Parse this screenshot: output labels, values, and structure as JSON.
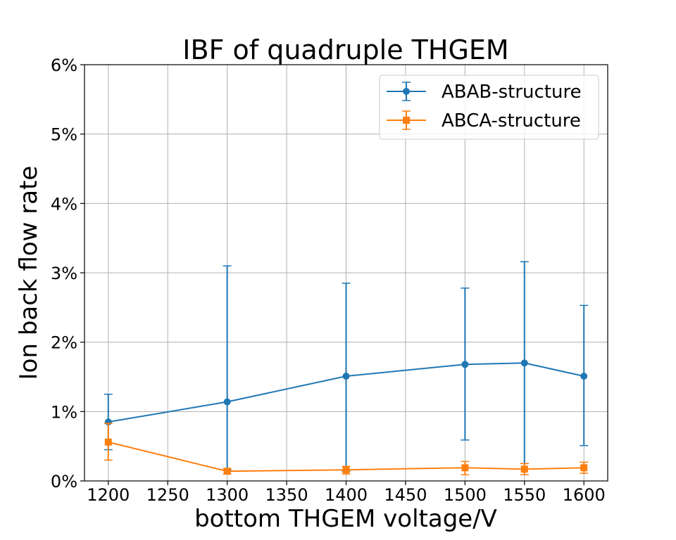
{
  "chart_data": {
    "type": "line",
    "title": "IBF of quadruple THGEM",
    "xlabel": "bottom THGEM voltage/V",
    "ylabel": "Ion back flow rate",
    "x": [
      1200,
      1300,
      1400,
      1500,
      1550,
      1600
    ],
    "xlim": [
      1180,
      1620
    ],
    "ylim": [
      0,
      6
    ],
    "xticks": [
      1200,
      1250,
      1300,
      1350,
      1400,
      1450,
      1500,
      1550,
      1600
    ],
    "yticks": [
      0,
      1,
      2,
      3,
      4,
      5,
      6
    ],
    "ytick_labels": [
      "0%",
      "1%",
      "2%",
      "3%",
      "4%",
      "5%",
      "6%"
    ],
    "y_unit": "percent",
    "grid": true,
    "legend_position": "top-right",
    "series": [
      {
        "name": "ABAB-structure",
        "color": "#1f77b4",
        "marker": "circle",
        "values": [
          0.85,
          1.14,
          1.51,
          1.68,
          1.7,
          1.51
        ],
        "err_low": [
          0.45,
          0.16,
          0.14,
          0.59,
          0.25,
          0.51
        ],
        "err_high": [
          1.25,
          3.1,
          2.85,
          2.78,
          3.16,
          2.53
        ]
      },
      {
        "name": "ABCA-structure",
        "color": "#ff7f0e",
        "marker": "square",
        "values": [
          0.56,
          0.14,
          0.16,
          0.19,
          0.17,
          0.19
        ],
        "err_low": [
          0.3,
          0.1,
          0.1,
          0.09,
          0.09,
          0.11
        ],
        "err_high": [
          0.83,
          0.18,
          0.21,
          0.28,
          0.25,
          0.27
        ]
      }
    ]
  }
}
